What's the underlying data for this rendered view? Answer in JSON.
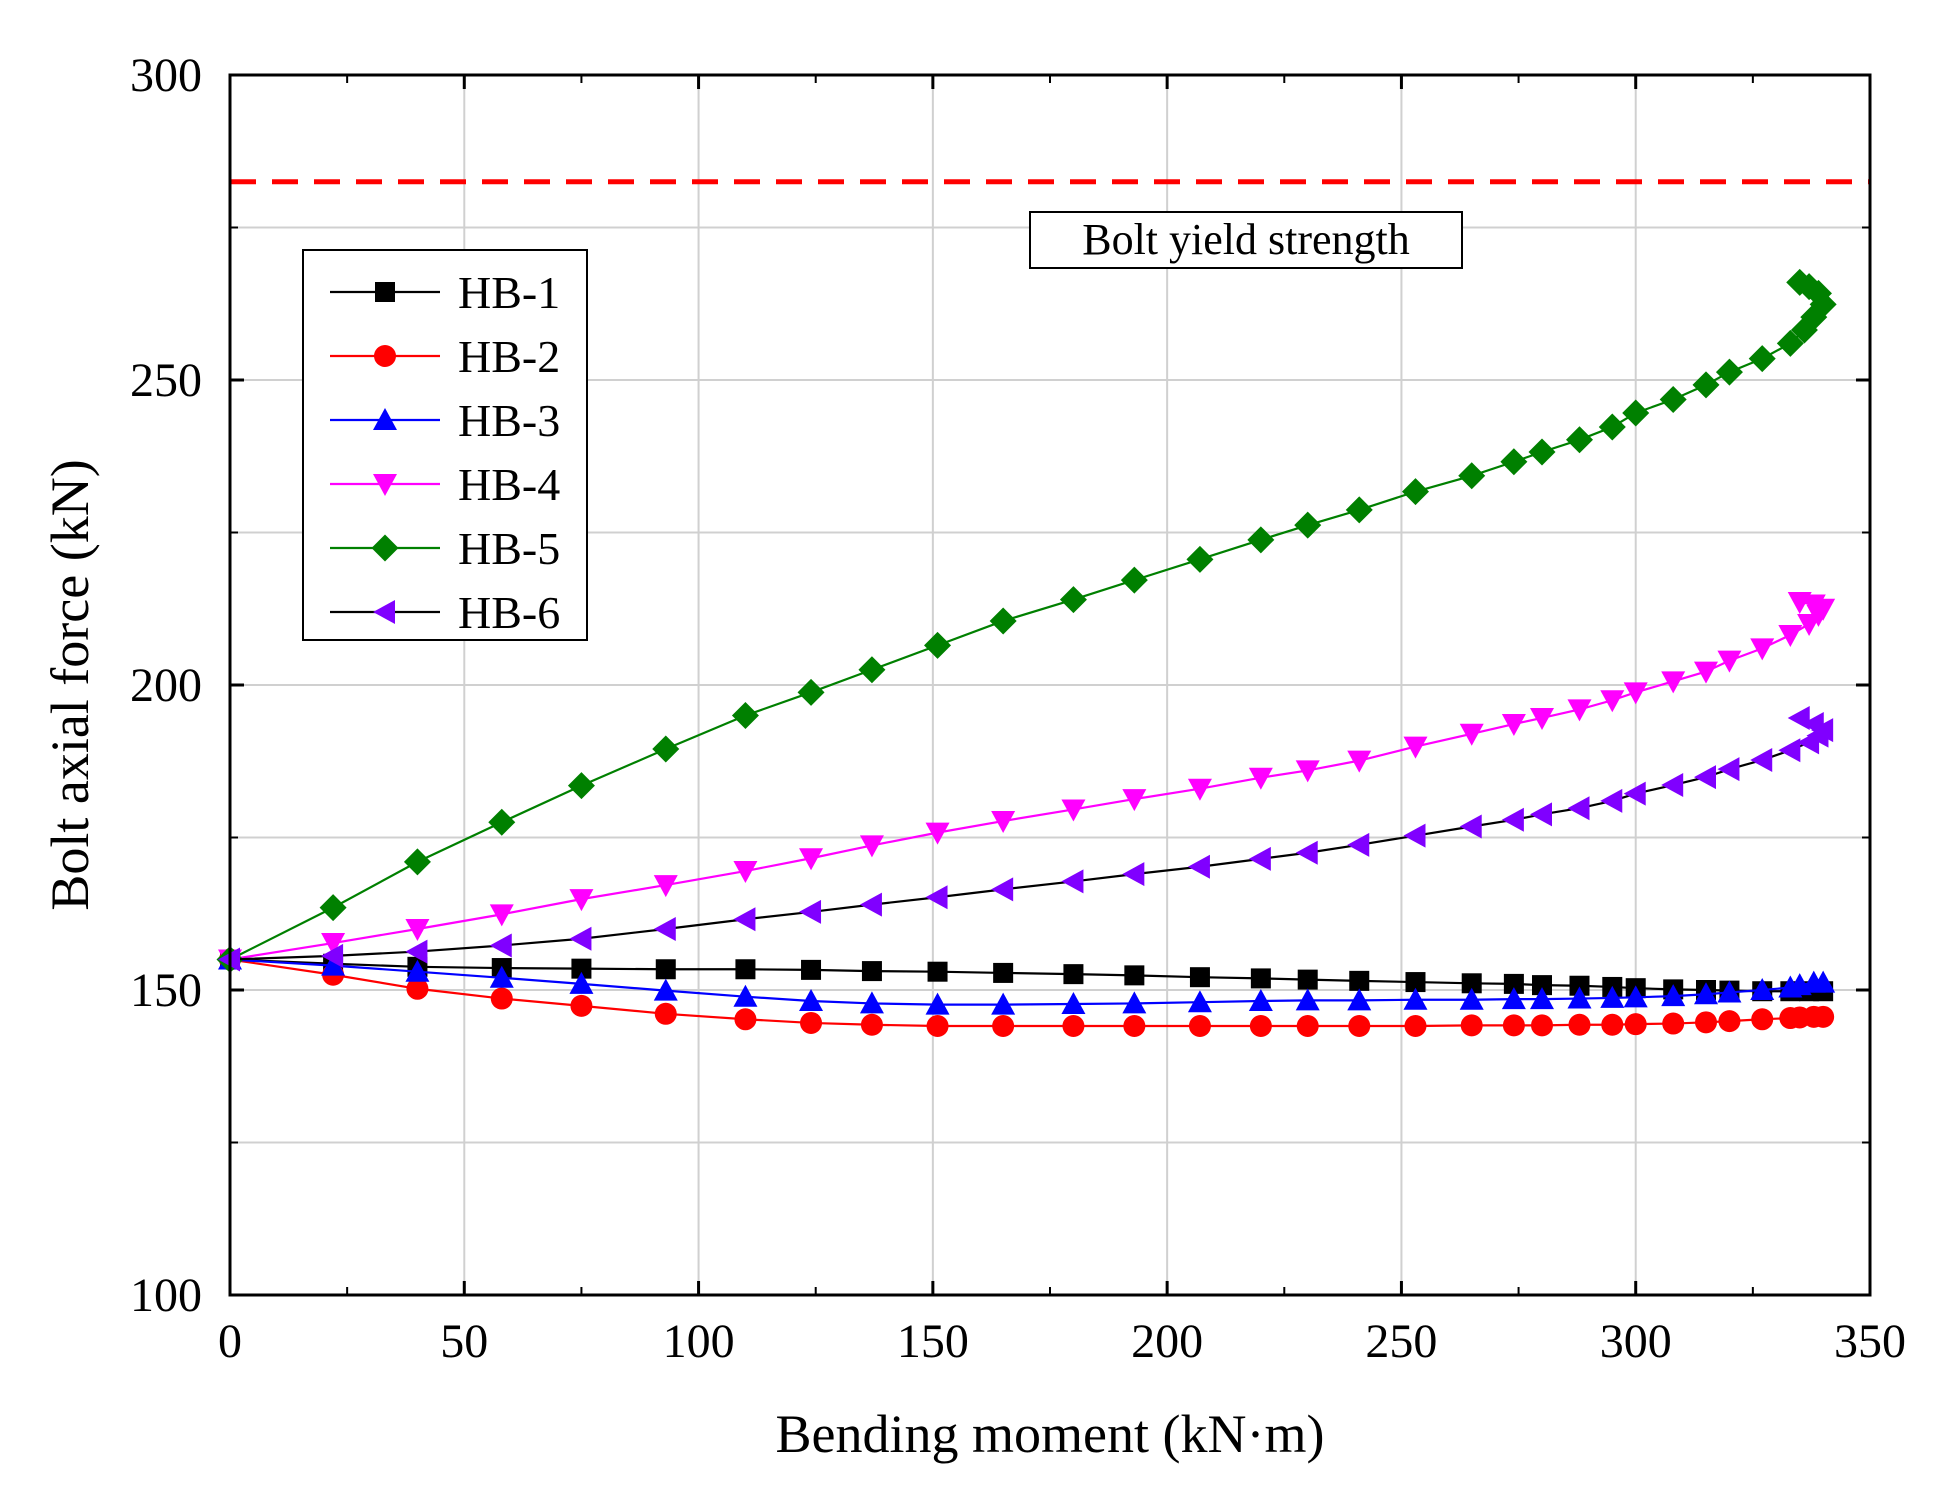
{
  "chart_data": {
    "type": "line",
    "title": "",
    "xlabel": "Bending moment (kN·m)",
    "ylabel": "Bolt axial force (kN)",
    "xlim": [
      0,
      350
    ],
    "ylim": [
      100,
      300
    ],
    "xticks": [
      0,
      50,
      100,
      150,
      200,
      250,
      300,
      350
    ],
    "yticks": [
      100,
      150,
      200,
      250,
      300
    ],
    "xtick_labels": [
      "0",
      "50",
      "100",
      "150",
      "200",
      "250",
      "300",
      "350"
    ],
    "ytick_labels": [
      "100",
      "150",
      "200",
      "250",
      "300"
    ],
    "grid": true,
    "legend_position": "upper-left",
    "reference_line": {
      "label": "Bolt yield strength",
      "y": 282.5,
      "color": "#ff0000",
      "style": "dashed"
    },
    "series": [
      {
        "name": "HB-1",
        "color": "#000000",
        "marker": "square",
        "x": [
          0,
          22,
          40,
          58,
          75,
          93,
          110,
          124,
          137,
          151,
          165,
          180,
          193,
          207,
          220,
          230,
          241,
          253,
          265,
          274,
          280,
          288,
          295,
          300,
          308,
          315,
          320,
          327,
          333,
          337,
          340
        ],
        "y": [
          155,
          154.3,
          153.8,
          153.6,
          153.5,
          153.4,
          153.4,
          153.3,
          153.1,
          153.0,
          152.8,
          152.6,
          152.4,
          152.1,
          151.9,
          151.7,
          151.5,
          151.3,
          151.1,
          151.0,
          150.8,
          150.7,
          150.5,
          150.3,
          150.1,
          150.0,
          149.9,
          149.8,
          149.8,
          149.8,
          149.8
        ]
      },
      {
        "name": "HB-2",
        "color": "#ff0000",
        "marker": "circle",
        "x": [
          0,
          22,
          40,
          58,
          75,
          93,
          110,
          124,
          137,
          151,
          165,
          180,
          193,
          207,
          220,
          230,
          241,
          253,
          265,
          274,
          280,
          288,
          295,
          300,
          308,
          315,
          320,
          327,
          333,
          335,
          338,
          340
        ],
        "y": [
          155,
          152.5,
          150.2,
          148.6,
          147.4,
          146.1,
          145.2,
          144.6,
          144.3,
          144.1,
          144.1,
          144.1,
          144.1,
          144.1,
          144.1,
          144.1,
          144.1,
          144.1,
          144.2,
          144.2,
          144.2,
          144.3,
          144.3,
          144.4,
          144.5,
          144.7,
          144.9,
          145.2,
          145.4,
          145.5,
          145.6,
          145.6
        ]
      },
      {
        "name": "HB-3",
        "color": "#0000ff",
        "marker": "triangle-up",
        "x": [
          0,
          22,
          40,
          58,
          75,
          93,
          110,
          124,
          137,
          151,
          165,
          180,
          193,
          207,
          220,
          230,
          241,
          253,
          265,
          274,
          280,
          288,
          295,
          300,
          308,
          315,
          320,
          327,
          333,
          335,
          338,
          340
        ],
        "y": [
          155,
          154.0,
          153.0,
          152.0,
          151.0,
          149.9,
          148.9,
          148.2,
          147.8,
          147.6,
          147.6,
          147.7,
          147.8,
          148.0,
          148.2,
          148.3,
          148.3,
          148.4,
          148.4,
          148.5,
          148.5,
          148.6,
          148.7,
          148.8,
          149.0,
          149.3,
          149.6,
          150.0,
          150.4,
          150.8,
          151.2,
          151.2
        ]
      },
      {
        "name": "HB-4",
        "color": "#ff00ff",
        "marker": "triangle-down",
        "x": [
          0,
          22,
          40,
          58,
          75,
          93,
          110,
          124,
          137,
          151,
          165,
          180,
          193,
          207,
          220,
          230,
          241,
          253,
          265,
          274,
          280,
          288,
          295,
          300,
          308,
          315,
          320,
          327,
          333,
          337,
          339,
          340,
          338,
          335
        ],
        "y": [
          155,
          157.7,
          160.0,
          162.4,
          164.9,
          167.2,
          169.5,
          171.6,
          173.7,
          175.8,
          177.7,
          179.6,
          181.3,
          183.0,
          184.8,
          186.0,
          187.6,
          189.9,
          192.0,
          193.6,
          194.6,
          196.0,
          197.5,
          198.8,
          200.6,
          202.2,
          204.0,
          206.0,
          208.2,
          210.0,
          211.5,
          212.5,
          213.2,
          213.6
        ]
      },
      {
        "name": "HB-5",
        "color": "#008000",
        "marker": "diamond",
        "x": [
          0,
          22,
          40,
          58,
          75,
          93,
          110,
          124,
          137,
          151,
          165,
          180,
          193,
          207,
          220,
          230,
          241,
          253,
          265,
          274,
          280,
          288,
          295,
          300,
          308,
          315,
          320,
          327,
          333,
          336,
          338,
          340,
          339,
          337,
          335
        ],
        "y": [
          155,
          163.5,
          171.0,
          177.5,
          183.5,
          189.5,
          195.0,
          198.8,
          202.5,
          206.5,
          210.5,
          214.0,
          217.2,
          220.6,
          223.8,
          226.2,
          228.7,
          231.7,
          234.3,
          236.6,
          238.2,
          240.2,
          242.3,
          244.6,
          246.8,
          249.2,
          251.3,
          253.5,
          256.0,
          258.2,
          260.3,
          262.4,
          264.2,
          265.3,
          266.0
        ]
      },
      {
        "name": "HB-6",
        "color": "#8000ff",
        "marker": "triangle-left",
        "x": [
          0,
          22,
          40,
          58,
          75,
          93,
          110,
          124,
          137,
          151,
          165,
          180,
          193,
          207,
          220,
          230,
          241,
          253,
          265,
          274,
          280,
          288,
          295,
          300,
          308,
          315,
          320,
          327,
          333,
          337,
          339,
          340,
          338,
          335
        ],
        "y": [
          155,
          155.6,
          156.3,
          157.3,
          158.4,
          160.0,
          161.6,
          162.8,
          164.0,
          165.2,
          166.5,
          167.8,
          169.0,
          170.2,
          171.5,
          172.5,
          173.8,
          175.3,
          176.8,
          177.9,
          178.8,
          179.8,
          181.0,
          182.2,
          183.6,
          184.9,
          186.2,
          187.7,
          189.3,
          190.6,
          191.7,
          192.6,
          193.6,
          194.6
        ]
      }
    ]
  }
}
